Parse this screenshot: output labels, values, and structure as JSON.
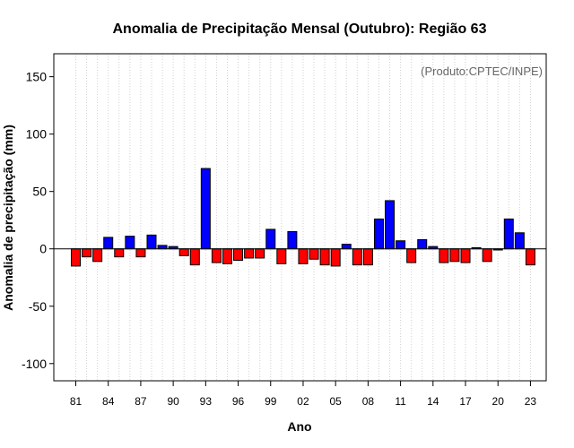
{
  "chart_data": {
    "type": "bar",
    "title": "Anomalia de Precipitação Mensal (Outubro): Região 63",
    "xlabel": "Ano",
    "ylabel": "Anomalia de precipitação (mm)",
    "credit": "(Produto:CPTEC/INPE)",
    "ylim": [
      -115,
      170
    ],
    "yticks": [
      -100,
      -50,
      0,
      50,
      100,
      150
    ],
    "ytick_labels": [
      "-100",
      "-50",
      "0",
      "50",
      "100",
      "150"
    ],
    "xtick_labels": [
      "81",
      "84",
      "87",
      "90",
      "93",
      "96",
      "99",
      "02",
      "05",
      "08",
      "11",
      "14",
      "17",
      "20",
      "23"
    ],
    "positive_color": "#0000ff",
    "negative_color": "#ff0000",
    "years": [
      1981,
      1982,
      1983,
      1984,
      1985,
      1986,
      1987,
      1988,
      1989,
      1990,
      1991,
      1992,
      1993,
      1994,
      1995,
      1996,
      1997,
      1998,
      1999,
      2000,
      2001,
      2002,
      2003,
      2004,
      2005,
      2006,
      2007,
      2008,
      2009,
      2010,
      2011,
      2012,
      2013,
      2014,
      2015,
      2016,
      2017,
      2018,
      2019,
      2020,
      2021,
      2022,
      2023
    ],
    "values": [
      -15,
      -7,
      -11,
      10,
      -7,
      11,
      -7,
      12,
      3,
      2,
      -6,
      -14,
      70,
      -12,
      -13,
      -10,
      -8,
      -8,
      17,
      -13,
      15,
      -13,
      -9,
      -14,
      -15,
      4,
      -14,
      -14,
      26,
      42,
      7,
      -12,
      8,
      2,
      -12,
      -11,
      -12,
      1,
      -11,
      -1,
      26,
      14,
      -14
    ]
  }
}
